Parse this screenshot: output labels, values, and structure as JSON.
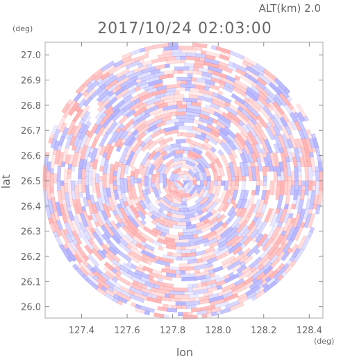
{
  "chart_data": {
    "type": "heatmap",
    "title": "2017/10/24 02:03:00",
    "subtitle": "ALT(km) 2.0",
    "xlabel": "lon",
    "ylabel": "lat",
    "x_unit": "(deg)",
    "y_unit": "(deg)",
    "xlim": [
      127.24,
      128.46
    ],
    "ylim": [
      25.955,
      27.05
    ],
    "x_ticks": [
      127.4,
      127.6,
      127.8,
      128.0,
      128.2,
      128.4
    ],
    "x_tick_labels": [
      "127.4",
      "127.6",
      "127.8",
      "128.0",
      "128.2",
      "128.4"
    ],
    "y_ticks": [
      26.0,
      26.1,
      26.2,
      26.3,
      26.4,
      26.5,
      26.6,
      26.7,
      26.8,
      26.9,
      27.0
    ],
    "y_tick_labels": [
      "26.0",
      "26.1",
      "26.2",
      "26.3",
      "26.4",
      "26.5",
      "26.6",
      "26.7",
      "26.8",
      "26.9",
      "27.0"
    ],
    "radar_center": {
      "lon": 127.845,
      "lat": 26.5
    },
    "radar_range": {
      "lon": 0.615,
      "lat": 0.55
    },
    "grid": false,
    "legend": "none",
    "colors": {
      "positive": "#ff9999",
      "negative": "#9999ff",
      "axis": "#666666",
      "frame": "#aaaaaa"
    }
  }
}
